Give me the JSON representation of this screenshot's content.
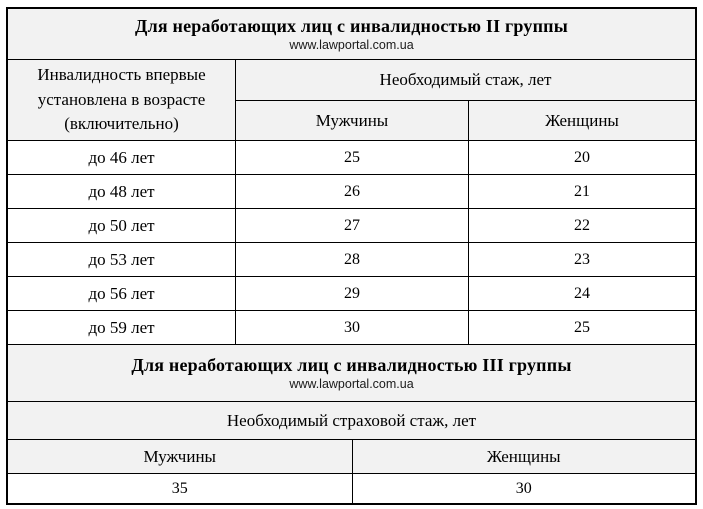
{
  "colors": {
    "header_bg": "#f2f2f2",
    "border": "#000000",
    "text": "#000000",
    "page_bg": "#ffffff"
  },
  "section1": {
    "title": "Для неработающих лиц с инвалидностью II группы",
    "source": "www.lawportal.com.ua",
    "col_header_age": "Инвалидность впервые установлена в возрасте (включительно)",
    "col_header_experience": "Необходимый стаж, лет",
    "sub_headers": {
      "men": "Мужчины",
      "women": "Женщины"
    },
    "rows": [
      {
        "age": "до 46 лет",
        "men": "25",
        "women": "20"
      },
      {
        "age": "до 48 лет",
        "men": "26",
        "women": "21"
      },
      {
        "age": "до 50 лет",
        "men": "27",
        "women": "22"
      },
      {
        "age": "до 53 лет",
        "men": "28",
        "women": "23"
      },
      {
        "age": "до 56 лет",
        "men": "29",
        "women": "24"
      },
      {
        "age": "до 59 лет",
        "men": "30",
        "women": "25"
      }
    ]
  },
  "section2": {
    "title": "Для неработающих лиц с инвалидностью III группы",
    "source": "www.lawportal.com.ua",
    "header": "Необходимый страховой стаж, лет",
    "sub_headers": {
      "men": "Мужчины",
      "women": "Женщины"
    },
    "values": {
      "men": "35",
      "women": "30"
    }
  },
  "chart_data": [
    {
      "type": "table",
      "title": "Для неработающих лиц с инвалидностью II группы",
      "columns": [
        "Инвалидность впервые установлена в возрасте (включительно)",
        "Мужчины",
        "Женщины"
      ],
      "rows": [
        [
          "до 46 лет",
          25,
          20
        ],
        [
          "до 48 лет",
          26,
          21
        ],
        [
          "до 50 лет",
          27,
          22
        ],
        [
          "до 53 лет",
          28,
          23
        ],
        [
          "до 56 лет",
          29,
          24
        ],
        [
          "до 59 лет",
          30,
          25
        ]
      ]
    },
    {
      "type": "table",
      "title": "Для неработающих лиц с инвалидностью III группы",
      "columns": [
        "Мужчины",
        "Женщины"
      ],
      "rows": [
        [
          35,
          30
        ]
      ]
    }
  ]
}
